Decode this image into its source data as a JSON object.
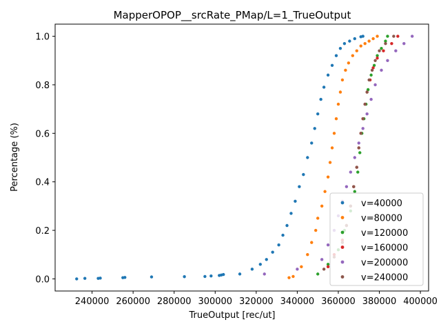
{
  "chart_data": {
    "type": "scatter",
    "title": "MapperOPOP__srcRate_PMap/L=1_TrueOutput",
    "xlabel": "TrueOutput [rec/ut]",
    "ylabel": "Percentage (%)",
    "xlim": [
      222000,
      404000
    ],
    "ylim": [
      -0.05,
      1.05
    ],
    "x_ticks": [
      240000,
      260000,
      280000,
      300000,
      320000,
      340000,
      360000,
      380000,
      400000
    ],
    "x_tick_labels": [
      "240000",
      "260000",
      "280000",
      "300000",
      "320000",
      "340000",
      "360000",
      "380000",
      "400000"
    ],
    "y_ticks": [
      0.0,
      0.2,
      0.4,
      0.6,
      0.8,
      1.0
    ],
    "y_tick_labels": [
      "0.0",
      "0.2",
      "0.4",
      "0.6",
      "0.8",
      "1.0"
    ],
    "grid": false,
    "legend_position": "lower right",
    "series": [
      {
        "name": "v=40000",
        "color": "#1f77b4",
        "x": [
          232500,
          236500,
          243000,
          244000,
          255000,
          256000,
          269000,
          285000,
          295000,
          298000,
          302000,
          303000,
          304000,
          312000,
          318000,
          322000,
          325000,
          328000,
          331000,
          333000,
          335000,
          337000,
          339000,
          341000,
          343000,
          345000,
          347000,
          348500,
          350000,
          351500,
          353000,
          355000,
          357000,
          359000,
          361000,
          363000,
          365500,
          368000,
          371000,
          372000
        ],
        "y": [
          0.0,
          0.002,
          0.002,
          0.003,
          0.005,
          0.006,
          0.008,
          0.009,
          0.01,
          0.012,
          0.014,
          0.016,
          0.018,
          0.02,
          0.04,
          0.06,
          0.08,
          0.11,
          0.14,
          0.18,
          0.22,
          0.27,
          0.32,
          0.38,
          0.43,
          0.5,
          0.56,
          0.62,
          0.68,
          0.74,
          0.79,
          0.84,
          0.88,
          0.92,
          0.95,
          0.97,
          0.98,
          0.99,
          0.998,
          1.0
        ]
      },
      {
        "name": "v=80000",
        "color": "#ff7f0e",
        "x": [
          336000,
          338000,
          342000,
          345000,
          347000,
          349000,
          350000,
          352000,
          353500,
          355000,
          356000,
          357000,
          358000,
          359000,
          360000,
          361000,
          362000,
          363500,
          365000,
          367000,
          369000,
          371000,
          373000,
          375000,
          377000,
          379000
        ],
        "y": [
          0.005,
          0.01,
          0.05,
          0.1,
          0.15,
          0.2,
          0.25,
          0.3,
          0.36,
          0.42,
          0.48,
          0.54,
          0.6,
          0.66,
          0.72,
          0.77,
          0.82,
          0.86,
          0.89,
          0.92,
          0.94,
          0.96,
          0.97,
          0.98,
          0.99,
          1.0
        ]
      },
      {
        "name": "v=120000",
        "color": "#2ca02c",
        "x": [
          350000,
          355000,
          360000,
          363000,
          366000,
          368000,
          369500,
          370500,
          371500,
          372500,
          373500,
          374500,
          376000,
          377500,
          379000,
          381000,
          383000,
          384000
        ],
        "y": [
          0.02,
          0.06,
          0.12,
          0.2,
          0.28,
          0.36,
          0.44,
          0.52,
          0.6,
          0.66,
          0.72,
          0.78,
          0.84,
          0.88,
          0.92,
          0.95,
          0.98,
          1.0
        ]
      },
      {
        "name": "v=160000",
        "color": "#d62728",
        "x": [
          355000,
          358000,
          362000,
          364000,
          366000,
          367500,
          369000,
          370000,
          371000,
          372000,
          373000,
          374000,
          375500,
          377000,
          379000,
          382000,
          386000,
          389000
        ],
        "y": [
          0.05,
          0.1,
          0.16,
          0.22,
          0.3,
          0.38,
          0.46,
          0.54,
          0.6,
          0.66,
          0.72,
          0.77,
          0.82,
          0.87,
          0.91,
          0.94,
          0.97,
          1.0
        ]
      },
      {
        "name": "v=200000",
        "color": "#9467bd",
        "x": [
          324000,
          340000,
          352000,
          355000,
          358000,
          360000,
          362000,
          364000,
          366000,
          368000,
          370000,
          372000,
          374000,
          376000,
          378000,
          381000,
          384000,
          388000,
          392000,
          396000
        ],
        "y": [
          0.02,
          0.04,
          0.08,
          0.14,
          0.2,
          0.26,
          0.32,
          0.38,
          0.44,
          0.5,
          0.56,
          0.62,
          0.68,
          0.74,
          0.8,
          0.86,
          0.9,
          0.94,
          0.97,
          1.0
        ]
      },
      {
        "name": "v=240000",
        "color": "#8c564b",
        "x": [
          353000,
          358000,
          362000,
          364000,
          366000,
          367500,
          369000,
          370000,
          371000,
          372000,
          373000,
          374000,
          375000,
          376500,
          378000,
          380000,
          383000,
          387000
        ],
        "y": [
          0.04,
          0.09,
          0.15,
          0.22,
          0.3,
          0.38,
          0.46,
          0.54,
          0.6,
          0.66,
          0.72,
          0.77,
          0.82,
          0.86,
          0.9,
          0.94,
          0.97,
          1.0
        ]
      }
    ]
  }
}
